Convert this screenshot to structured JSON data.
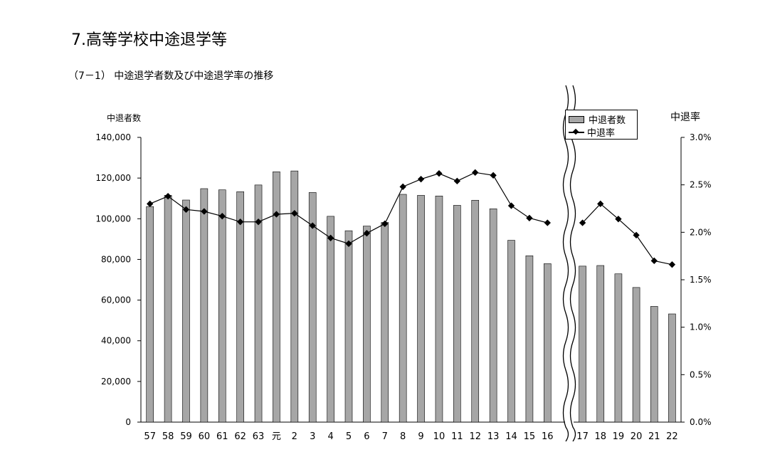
{
  "page": {
    "title": "7.高等学校中途退学等",
    "subtitle": "（7－1） 中途退学者数及び中途退学率の推移"
  },
  "chart_data": {
    "type": "bar",
    "categories": [
      "57",
      "58",
      "59",
      "60",
      "61",
      "62",
      "63",
      "元",
      "2",
      "3",
      "4",
      "5",
      "6",
      "7",
      "8",
      "9",
      "10",
      "11",
      "12",
      "13",
      "14",
      "15",
      "16",
      "17",
      "18",
      "19",
      "20",
      "21",
      "22"
    ],
    "axis_break_after": "16",
    "ylabel_left": "中退者数",
    "ylabel_right": "中退率",
    "ylim_left": [
      0,
      140000
    ],
    "ylim_right": [
      0,
      3.0
    ],
    "yticks_left": [
      "0",
      "20,000",
      "40,000",
      "60,000",
      "80,000",
      "100,000",
      "120,000",
      "140,000"
    ],
    "yticks_right": [
      "0.0%",
      "0.5%",
      "1.0%",
      "1.5%",
      "2.0%",
      "2.5%",
      "3.0%"
    ],
    "legend": [
      "中退者数",
      "中退率"
    ],
    "colors": {
      "bar": "#a6a6a6",
      "line": "#000000"
    },
    "series": [
      {
        "name": "中退者数",
        "type": "bar",
        "values": [
          106000,
          111500,
          109200,
          114800,
          114200,
          113300,
          116600,
          123100,
          123500,
          112900,
          101200,
          94100,
          96400,
          98200,
          112000,
          111500,
          111200,
          106600,
          109100,
          104900,
          89400,
          81800,
          77900,
          76700,
          77000,
          72900,
          66200,
          56900,
          53200
        ]
      },
      {
        "name": "中退率",
        "type": "line",
        "values": [
          2.3,
          2.38,
          2.24,
          2.22,
          2.17,
          2.11,
          2.11,
          2.19,
          2.2,
          2.07,
          1.94,
          1.88,
          1.99,
          2.09,
          2.48,
          2.56,
          2.62,
          2.54,
          2.63,
          2.6,
          2.28,
          2.15,
          2.1,
          2.1,
          2.3,
          2.14,
          1.97,
          1.7,
          1.66
        ]
      }
    ]
  }
}
